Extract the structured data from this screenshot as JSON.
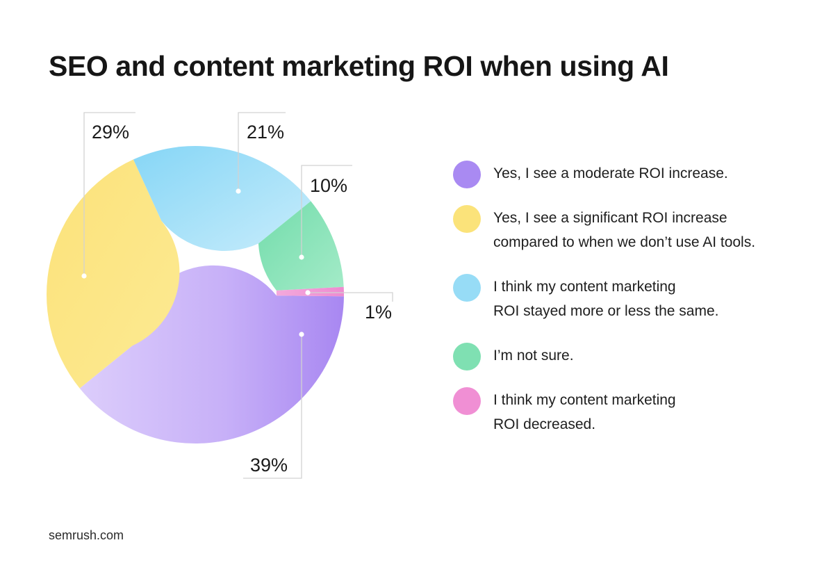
{
  "title": "SEO and content marketing ROI when using AI",
  "source": "semrush.com",
  "chart_data": {
    "type": "pie",
    "variant": "donut",
    "title": "SEO and content marketing ROI when using AI",
    "legend_position": "right",
    "slices": [
      {
        "name": "Yes, I see a moderate ROI increase.",
        "value": 39,
        "label": "39%",
        "color": "#b69bf5"
      },
      {
        "name": "Yes, I see a significant ROI increase compared to when we don’t use AI tools.",
        "value": 29,
        "label": "29%",
        "color": "#fbe37a"
      },
      {
        "name": "I think my content marketing ROI stayed more or less the same.",
        "value": 21,
        "label": "21%",
        "color": "#97dcf6"
      },
      {
        "name": "I’m not sure.",
        "value": 10,
        "label": "10%",
        "color": "#7fe0b2"
      },
      {
        "name": "I think my content marketing ROI decreased.",
        "value": 1,
        "label": "1%",
        "color": "#f08fd4"
      }
    ]
  },
  "legend": [
    {
      "lines": [
        "Yes, I see a moderate ROI increase."
      ],
      "color": "#a98af2"
    },
    {
      "lines": [
        "Yes, I see a significant ROI increase",
        "compared to when we don’t use AI tools."
      ],
      "color": "#fbe37a"
    },
    {
      "lines": [
        "I think my content marketing",
        "ROI stayed more or less the same."
      ],
      "color": "#97dcf6"
    },
    {
      "lines": [
        "I’m not sure."
      ],
      "color": "#7fe0b2"
    },
    {
      "lines": [
        "I think my content marketing",
        "ROI decreased."
      ],
      "color": "#f08fd4"
    }
  ]
}
